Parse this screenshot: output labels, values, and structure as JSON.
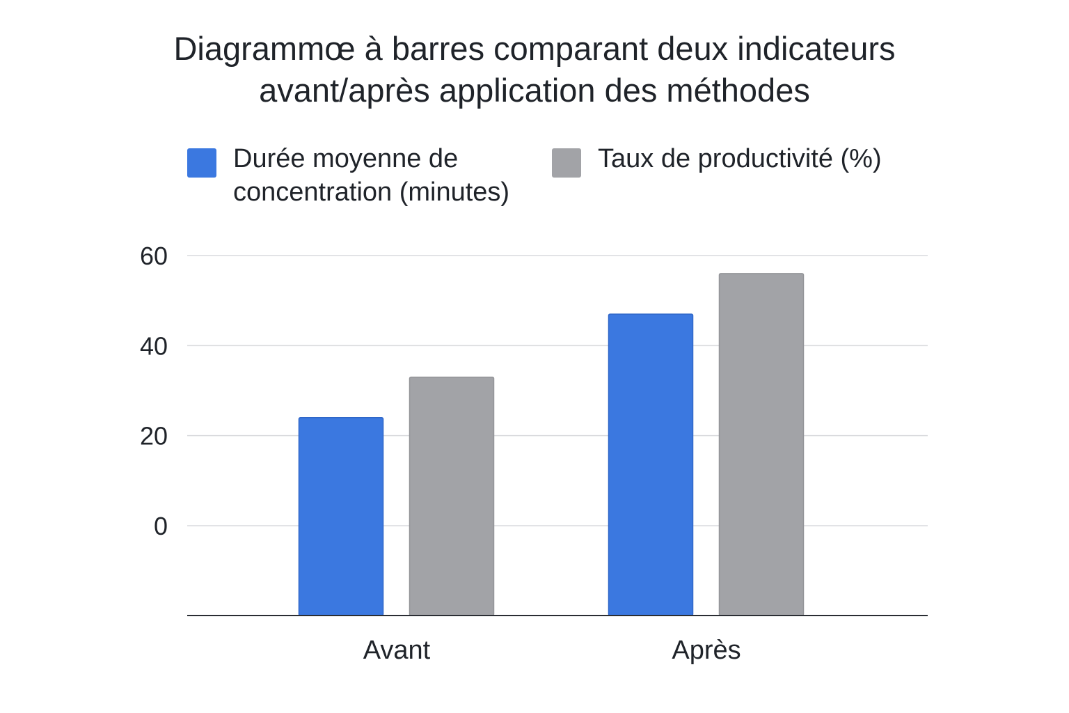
{
  "chart_data": {
    "type": "bar",
    "title_line1": "Diagrammœ à barres comparant deux indicateurs",
    "title_line2": "avant/après application des méthodes",
    "categories": [
      "Avant",
      "Après"
    ],
    "series": [
      {
        "name": "Durée moyenne de concentration (minutes)",
        "name_line1": "Durée moyenne de",
        "name_line2": "concentration (minutes)",
        "color": "#3b78e0",
        "values": [
          24,
          47
        ]
      },
      {
        "name": "Taux de productivité (%)",
        "color": "#a2a3a7",
        "values": [
          33,
          56
        ]
      }
    ],
    "yticks": [
      "60",
      "40",
      "20",
      "0"
    ],
    "ytick_values": [
      60,
      40,
      20,
      0
    ],
    "ylim": [
      -20,
      60
    ],
    "grid": true,
    "legend_position": "top"
  }
}
